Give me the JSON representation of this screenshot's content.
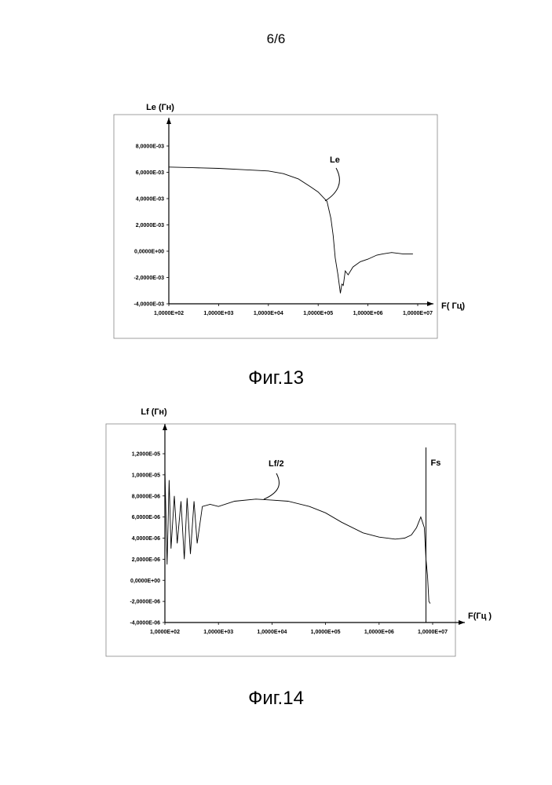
{
  "page": {
    "number": "6/6"
  },
  "figures": [
    {
      "caption": "Фиг.13",
      "chart_data": {
        "type": "line",
        "title": "",
        "ylabel": "Le (Гн)",
        "xlabel": "F( Гц)",
        "x_scale": "log",
        "xlim": [
          100,
          10000000
        ],
        "ylim": [
          -0.004,
          0.008
        ],
        "xtick_labels": [
          "1,0000E+02",
          "1,0000E+03",
          "1,0000E+04",
          "1,0000E+05",
          "1,0000E+06",
          "1,0000E+07"
        ],
        "xtick_values": [
          100,
          1000,
          10000,
          100000,
          1000000,
          10000000
        ],
        "ytick_labels": [
          "8,0000E-03",
          "6,0000E-03",
          "4,0000E-03",
          "2,0000E-03",
          "0,0000E+00",
          "-2,0000E-03",
          "-4,0000E-03"
        ],
        "ytick_values": [
          0.008,
          0.006,
          0.004,
          0.002,
          0,
          -0.002,
          -0.004
        ],
        "grid": false,
        "series": [
          {
            "name": "Le",
            "x": [
              100,
              300,
              1000,
              3000,
              10000,
              20000,
              40000,
              70000,
              100000,
              150000,
              180000,
              200000,
              220000,
              250000,
              280000,
              300000,
              320000,
              350000,
              400000,
              500000,
              700000,
              1000000,
              1500000,
              2000000,
              3000000,
              5000000,
              8000000
            ],
            "y": [
              0.0064,
              0.00635,
              0.0063,
              0.0062,
              0.0061,
              0.0059,
              0.0055,
              0.0049,
              0.0045,
              0.0038,
              0.0025,
              0.0012,
              -0.0005,
              -0.0018,
              -0.0032,
              -0.0025,
              -0.0026,
              -0.0015,
              -0.0018,
              -0.0012,
              -0.0008,
              -0.0006,
              -0.0003,
              -0.0002,
              -0.0001,
              -0.0002,
              -0.0002
            ]
          }
        ]
      }
    },
    {
      "caption": "Фиг.14",
      "chart_data": {
        "type": "line",
        "title": "",
        "ylabel": "Lf (Гн)",
        "xlabel": "F(Гц )",
        "x_scale": "log",
        "xlim": [
          100,
          10000000
        ],
        "ylim": [
          -4e-06,
          1.2e-05
        ],
        "xtick_labels": [
          "1,0000E+02",
          "1,0000E+03",
          "1,0000E+04",
          "1,0000E+05",
          "1,0000E+06",
          "1,0000E+07"
        ],
        "xtick_values": [
          100,
          1000,
          10000,
          100000,
          1000000,
          10000000
        ],
        "ytick_labels": [
          "1,2000E-05",
          "1,0000E-05",
          "8,0000E-06",
          "6,0000E-06",
          "4,0000E-06",
          "2,0000E-06",
          "0,0000E+00",
          "-2,0000E-06",
          "-4,0000E-06"
        ],
        "ytick_values": [
          1.2e-05,
          1e-05,
          8e-06,
          6e-06,
          4e-06,
          2e-06,
          0,
          -2e-06,
          -4e-06
        ],
        "grid": false,
        "series": [
          {
            "name": "Lf/2",
            "x": [
              100,
              110,
              120,
              130,
              150,
              170,
              200,
              230,
              260,
              300,
              350,
              400,
              500,
              700,
              1000,
              2000,
              5000,
              10000,
              20000,
              50000,
              100000,
              200000,
              500000,
              1000000,
              2000000,
              3000000,
              4000000,
              5000000,
              6000000,
              7000000,
              7500000,
              8000000,
              8500000,
              9000000
            ],
            "y": [
              1.05e-05,
              1.5e-06,
              9.5e-06,
              3e-06,
              8e-06,
              3.5e-06,
              7.5e-06,
              2e-06,
              7.8e-06,
              2.5e-06,
              7.5e-06,
              3.5e-06,
              7e-06,
              7.2e-06,
              7e-06,
              7.5e-06,
              7.7e-06,
              7.6e-06,
              7.5e-06,
              7e-06,
              6.4e-06,
              5.5e-06,
              4.5e-06,
              4.1e-06,
              3.9e-06,
              4e-06,
              4.3e-06,
              5e-06,
              6e-06,
              5e-06,
              2e-06,
              5e-07,
              -2e-06,
              -2.2e-06
            ]
          }
        ],
        "annotations": [
          {
            "text": "Fs",
            "x": 7500000
          }
        ]
      }
    }
  ]
}
